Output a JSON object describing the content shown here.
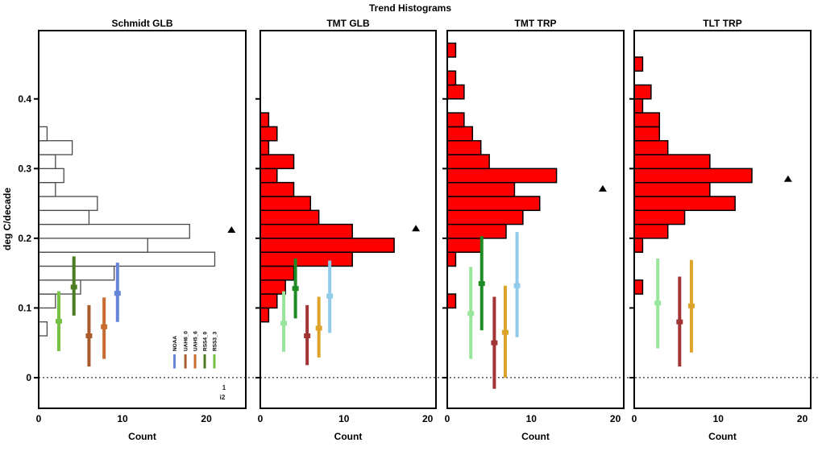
{
  "chart_data": {
    "type": "bar",
    "subtype": "horizontal-histogram-small-multiples",
    "title": "Trend Histograms",
    "ylabel": "deg C/decade",
    "bin_width": 0.02,
    "ylim": [
      -0.044,
      0.498
    ],
    "y_ticks": [
      "0",
      "0.1",
      "0.2",
      "0.3",
      "0.4"
    ],
    "grid": "off",
    "zero_line": "dotted",
    "panels": [
      {
        "title": "Schmidt GLB",
        "xlabel": "Count",
        "style": "outline",
        "xlim": [
          0,
          24.7
        ],
        "x_ticks": [
          "0",
          "10",
          "20"
        ],
        "bins": [
          {
            "y": 0.06,
            "count": 1
          },
          {
            "y": 0.1,
            "count": 2
          },
          {
            "y": 0.12,
            "count": 5
          },
          {
            "y": 0.14,
            "count": 9
          },
          {
            "y": 0.16,
            "count": 21
          },
          {
            "y": 0.18,
            "count": 13
          },
          {
            "y": 0.2,
            "count": 18
          },
          {
            "y": 0.22,
            "count": 6
          },
          {
            "y": 0.24,
            "count": 7
          },
          {
            "y": 0.26,
            "count": 2
          },
          {
            "y": 0.28,
            "count": 3
          },
          {
            "y": 0.3,
            "count": 2
          },
          {
            "y": 0.32,
            "count": 4
          },
          {
            "y": 0.34,
            "count": 1
          }
        ],
        "error_bars": [
          {
            "series": "RSS3_3",
            "x": 2.4,
            "mid": 0.081,
            "lo": 0.038,
            "hi": 0.124,
            "color": "#76C043"
          },
          {
            "series": "RSS4_0",
            "x": 4.2,
            "mid": 0.13,
            "lo": 0.089,
            "hi": 0.174,
            "color": "#4D7B22"
          },
          {
            "series": "UAH6_0",
            "x": 6.0,
            "mid": 0.06,
            "lo": 0.016,
            "hi": 0.104,
            "color": "#AA5B2B"
          },
          {
            "series": "UAH5_6",
            "x": 7.8,
            "mid": 0.073,
            "lo": 0.027,
            "hi": 0.115,
            "color": "#C76B2E"
          },
          {
            "series": "NOAA",
            "x": 9.4,
            "mid": 0.121,
            "lo": 0.08,
            "hi": 0.165,
            "color": "#6585DA"
          }
        ],
        "triangle": {
          "x": 23.0,
          "y": 0.212
        },
        "legend": [
          {
            "label": "NOAA",
            "color": "#6585DA",
            "x": 16.2
          },
          {
            "label": "UAH6_0",
            "color": "#AA5B2B",
            "x": 17.5
          },
          {
            "label": "UAH5_6",
            "color": "#C76B2E",
            "x": 18.65
          },
          {
            "label": "RSS4_0",
            "color": "#4D7B22",
            "x": 19.8
          },
          {
            "label": "RSS3_3",
            "color": "#76C043",
            "x": 20.95
          }
        ],
        "stray_text": [
          "1",
          "i2"
        ]
      },
      {
        "title": "TMT GLB",
        "xlabel": "Count",
        "style": "red",
        "xlim": [
          0,
          21
        ],
        "x_ticks": [
          "0",
          "10",
          "20"
        ],
        "bins": [
          {
            "y": 0.08,
            "count": 1
          },
          {
            "y": 0.1,
            "count": 2
          },
          {
            "y": 0.12,
            "count": 3
          },
          {
            "y": 0.14,
            "count": 4
          },
          {
            "y": 0.16,
            "count": 11
          },
          {
            "y": 0.18,
            "count": 16
          },
          {
            "y": 0.2,
            "count": 11
          },
          {
            "y": 0.22,
            "count": 7
          },
          {
            "y": 0.24,
            "count": 6
          },
          {
            "y": 0.26,
            "count": 4
          },
          {
            "y": 0.28,
            "count": 2
          },
          {
            "y": 0.3,
            "count": 4
          },
          {
            "y": 0.32,
            "count": 1
          },
          {
            "y": 0.34,
            "count": 2
          },
          {
            "y": 0.36,
            "count": 1
          }
        ],
        "error_bars": [
          {
            "x": 2.8,
            "mid": 0.078,
            "lo": 0.037,
            "hi": 0.124,
            "color": "#99E59B"
          },
          {
            "x": 4.2,
            "mid": 0.128,
            "lo": 0.085,
            "hi": 0.171,
            "color": "#1E8B24"
          },
          {
            "x": 5.6,
            "mid": 0.06,
            "lo": 0.018,
            "hi": 0.104,
            "color": "#A23436"
          },
          {
            "x": 7.0,
            "mid": 0.071,
            "lo": 0.029,
            "hi": 0.116,
            "color": "#DEA32B"
          },
          {
            "x": 8.3,
            "mid": 0.117,
            "lo": 0.064,
            "hi": 0.168,
            "color": "#90CBE9"
          }
        ],
        "triangle": {
          "x": 18.6,
          "y": 0.214
        }
      },
      {
        "title": "TMT TRP",
        "xlabel": "Count",
        "style": "red",
        "xlim": [
          0,
          21
        ],
        "x_ticks": [
          "0",
          "10",
          "20"
        ],
        "bins": [
          {
            "y": 0.1,
            "count": 1
          },
          {
            "y": 0.16,
            "count": 1
          },
          {
            "y": 0.18,
            "count": 4
          },
          {
            "y": 0.2,
            "count": 7
          },
          {
            "y": 0.22,
            "count": 9
          },
          {
            "y": 0.24,
            "count": 11
          },
          {
            "y": 0.26,
            "count": 8
          },
          {
            "y": 0.28,
            "count": 13
          },
          {
            "y": 0.3,
            "count": 5
          },
          {
            "y": 0.32,
            "count": 4
          },
          {
            "y": 0.34,
            "count": 3
          },
          {
            "y": 0.36,
            "count": 2
          },
          {
            "y": 0.4,
            "count": 2
          },
          {
            "y": 0.42,
            "count": 1
          },
          {
            "y": 0.46,
            "count": 1
          }
        ],
        "error_bars": [
          {
            "x": 2.8,
            "mid": 0.092,
            "lo": 0.027,
            "hi": 0.159,
            "color": "#99E59B"
          },
          {
            "x": 4.1,
            "mid": 0.135,
            "lo": 0.068,
            "hi": 0.203,
            "color": "#1E8B24"
          },
          {
            "x": 5.6,
            "mid": 0.05,
            "lo": -0.016,
            "hi": 0.116,
            "color": "#A23436"
          },
          {
            "x": 6.9,
            "mid": 0.065,
            "lo": 0.0,
            "hi": 0.132,
            "color": "#DEA32B"
          },
          {
            "x": 8.3,
            "mid": 0.132,
            "lo": 0.058,
            "hi": 0.209,
            "color": "#90CBE9"
          }
        ],
        "triangle": {
          "x": 18.5,
          "y": 0.271
        }
      },
      {
        "title": "TLT TRP",
        "xlabel": "Count",
        "style": "red",
        "xlim": [
          0,
          21
        ],
        "x_ticks": [
          "0",
          "10",
          "20"
        ],
        "bins": [
          {
            "y": 0.12,
            "count": 1
          },
          {
            "y": 0.18,
            "count": 1
          },
          {
            "y": 0.2,
            "count": 4
          },
          {
            "y": 0.22,
            "count": 6
          },
          {
            "y": 0.24,
            "count": 12
          },
          {
            "y": 0.26,
            "count": 9
          },
          {
            "y": 0.28,
            "count": 14
          },
          {
            "y": 0.3,
            "count": 9
          },
          {
            "y": 0.32,
            "count": 4
          },
          {
            "y": 0.34,
            "count": 3
          },
          {
            "y": 0.36,
            "count": 3
          },
          {
            "y": 0.38,
            "count": 1
          },
          {
            "y": 0.4,
            "count": 2
          },
          {
            "y": 0.44,
            "count": 1
          }
        ],
        "error_bars": [
          {
            "x": 2.8,
            "mid": 0.107,
            "lo": 0.042,
            "hi": 0.171,
            "color": "#99E59B"
          },
          {
            "x": 5.4,
            "mid": 0.08,
            "lo": 0.016,
            "hi": 0.145,
            "color": "#A23436"
          },
          {
            "x": 6.8,
            "mid": 0.103,
            "lo": 0.036,
            "hi": 0.169,
            "color": "#DEA32B"
          }
        ],
        "triangle": {
          "x": 18.3,
          "y": 0.285
        }
      }
    ]
  },
  "colors": {
    "histogram_red": "#FE0000",
    "histogram_outline_stroke": "#4A4A4A",
    "axis": "#000000",
    "triangle": "#000000"
  }
}
